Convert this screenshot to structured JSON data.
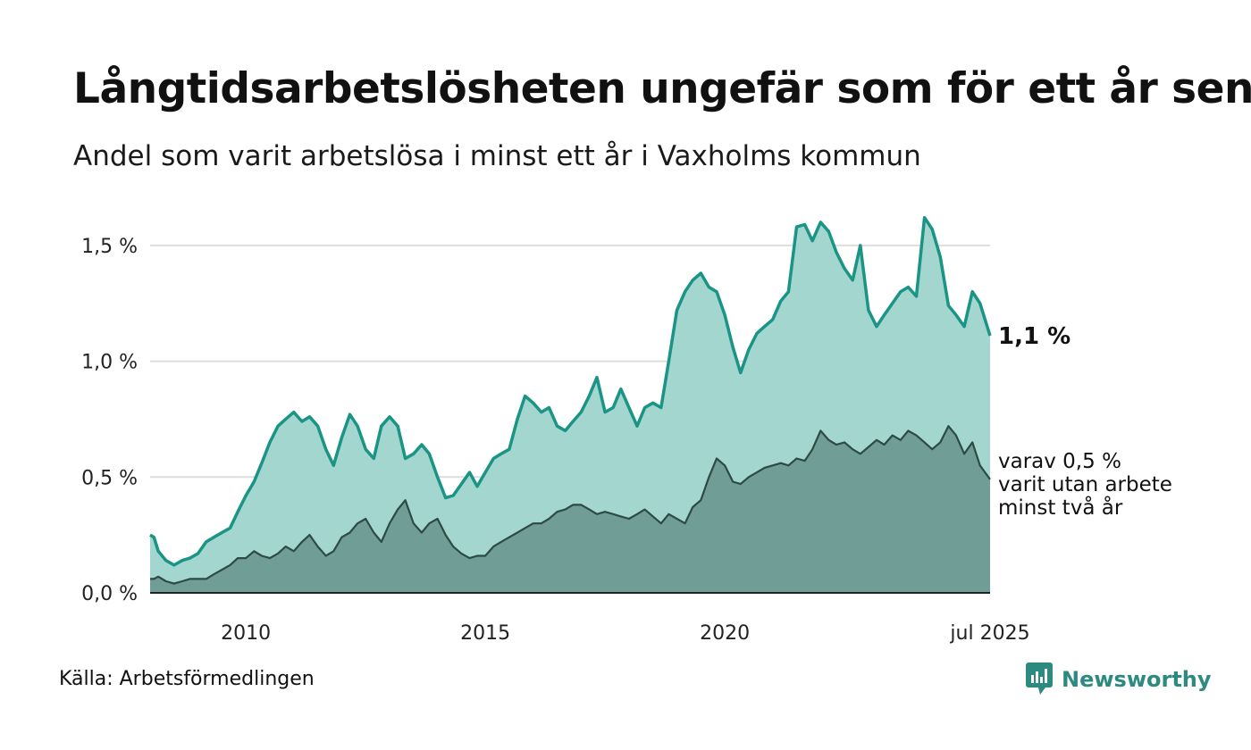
{
  "title": "Långtidsarbetslösheten ungefär som för ett år sen",
  "subtitle": "Andel som varit arbetslösa i minst ett år i Vaxholms kommun",
  "source": "Källa: Arbetsförmedlingen",
  "brand": {
    "name": "Newsworthy",
    "icon": "newsworthy-logo-icon"
  },
  "colors": {
    "upper_line": "#1a9485",
    "upper_fill": "#a4d6d0",
    "lower_line": "#2d4a45",
    "lower_fill": "#709d96",
    "grid": "#dddddd",
    "axis": "#222222",
    "brand": "#2c8a80"
  },
  "chart_data": {
    "type": "area",
    "title": "Långtidsarbetslösheten ungefär som för ett år sen",
    "subtitle": "Andel som varit arbetslösa i minst ett år i Vaxholms kommun",
    "xlabel": "",
    "ylabel": "",
    "x_ticks": [
      "2010",
      "2015",
      "2020",
      "jul 2025"
    ],
    "x_tick_values": [
      2010.0,
      2015.0,
      2020.0,
      2025.54
    ],
    "xlim": [
      2008.0,
      2025.54
    ],
    "y_ticks": [
      "0,0 %",
      "0,5 %",
      "1,0 %",
      "1,5 %"
    ],
    "y_tick_values": [
      0,
      0.5,
      1.0,
      1.5
    ],
    "ylim": [
      0,
      1.75
    ],
    "grid": true,
    "labels": {
      "last_value": "1,1 %",
      "lower_label": [
        "varav 0,5 %",
        "varit utan arbete",
        "minst två år"
      ]
    },
    "series": [
      {
        "key": "min_1_ar",
        "x": [
          2008.0,
          2008.08,
          2008.17,
          2008.33,
          2008.5,
          2008.67,
          2008.83,
          2009.0,
          2009.17,
          2009.33,
          2009.5,
          2009.67,
          2009.83,
          2010.0,
          2010.17,
          2010.33,
          2010.5,
          2010.67,
          2010.83,
          2011.0,
          2011.17,
          2011.33,
          2011.5,
          2011.67,
          2011.83,
          2012.0,
          2012.17,
          2012.33,
          2012.5,
          2012.67,
          2012.83,
          2013.0,
          2013.17,
          2013.33,
          2013.5,
          2013.67,
          2013.83,
          2014.0,
          2014.17,
          2014.33,
          2014.5,
          2014.67,
          2014.83,
          2015.0,
          2015.17,
          2015.33,
          2015.5,
          2015.67,
          2015.83,
          2016.0,
          2016.17,
          2016.33,
          2016.5,
          2016.67,
          2016.83,
          2017.0,
          2017.17,
          2017.33,
          2017.5,
          2017.67,
          2017.83,
          2018.0,
          2018.17,
          2018.33,
          2018.5,
          2018.67,
          2018.83,
          2019.0,
          2019.17,
          2019.33,
          2019.5,
          2019.67,
          2019.83,
          2020.0,
          2020.17,
          2020.33,
          2020.5,
          2020.67,
          2020.83,
          2021.0,
          2021.17,
          2021.33,
          2021.5,
          2021.67,
          2021.83,
          2022.0,
          2022.17,
          2022.33,
          2022.5,
          2022.67,
          2022.83,
          2023.0,
          2023.17,
          2023.33,
          2023.5,
          2023.67,
          2023.83,
          2024.0,
          2024.17,
          2024.33,
          2024.5,
          2024.67,
          2024.83,
          2025.0,
          2025.17,
          2025.33,
          2025.54
        ],
        "y": [
          0.25,
          0.24,
          0.18,
          0.14,
          0.12,
          0.14,
          0.15,
          0.17,
          0.22,
          0.24,
          0.26,
          0.28,
          0.35,
          0.42,
          0.48,
          0.56,
          0.65,
          0.72,
          0.75,
          0.78,
          0.74,
          0.76,
          0.72,
          0.62,
          0.55,
          0.67,
          0.77,
          0.72,
          0.62,
          0.58,
          0.72,
          0.76,
          0.72,
          0.58,
          0.6,
          0.64,
          0.6,
          0.5,
          0.41,
          0.42,
          0.47,
          0.52,
          0.46,
          0.52,
          0.58,
          0.6,
          0.62,
          0.75,
          0.85,
          0.82,
          0.78,
          0.8,
          0.72,
          0.7,
          0.74,
          0.78,
          0.85,
          0.93,
          0.78,
          0.8,
          0.88,
          0.8,
          0.72,
          0.8,
          0.82,
          0.8,
          1.0,
          1.22,
          1.3,
          1.35,
          1.38,
          1.32,
          1.3,
          1.2,
          1.06,
          0.95,
          1.05,
          1.12,
          1.15,
          1.18,
          1.26,
          1.3,
          1.58,
          1.59,
          1.52,
          1.6,
          1.56,
          1.47,
          1.4,
          1.35,
          1.5,
          1.22,
          1.15,
          1.2,
          1.25,
          1.3,
          1.32,
          1.28,
          1.62,
          1.57,
          1.45,
          1.24,
          1.2,
          1.15,
          1.3,
          1.25,
          1.11
        ],
        "last_label": "1,1 %"
      },
      {
        "key": "min_2_ar",
        "x": [
          2008.0,
          2008.08,
          2008.17,
          2008.33,
          2008.5,
          2008.67,
          2008.83,
          2009.0,
          2009.17,
          2009.33,
          2009.5,
          2009.67,
          2009.83,
          2010.0,
          2010.17,
          2010.33,
          2010.5,
          2010.67,
          2010.83,
          2011.0,
          2011.17,
          2011.33,
          2011.5,
          2011.67,
          2011.83,
          2012.0,
          2012.17,
          2012.33,
          2012.5,
          2012.67,
          2012.83,
          2013.0,
          2013.17,
          2013.33,
          2013.5,
          2013.67,
          2013.83,
          2014.0,
          2014.17,
          2014.33,
          2014.5,
          2014.67,
          2014.83,
          2015.0,
          2015.17,
          2015.33,
          2015.5,
          2015.67,
          2015.83,
          2016.0,
          2016.17,
          2016.33,
          2016.5,
          2016.67,
          2016.83,
          2017.0,
          2017.17,
          2017.33,
          2017.5,
          2017.67,
          2017.83,
          2018.0,
          2018.17,
          2018.33,
          2018.5,
          2018.67,
          2018.83,
          2019.0,
          2019.17,
          2019.33,
          2019.5,
          2019.67,
          2019.83,
          2020.0,
          2020.17,
          2020.33,
          2020.5,
          2020.67,
          2020.83,
          2021.0,
          2021.17,
          2021.33,
          2021.5,
          2021.67,
          2021.83,
          2022.0,
          2022.17,
          2022.33,
          2022.5,
          2022.67,
          2022.83,
          2023.0,
          2023.17,
          2023.33,
          2023.5,
          2023.67,
          2023.83,
          2024.0,
          2024.17,
          2024.33,
          2024.5,
          2024.67,
          2024.83,
          2025.0,
          2025.17,
          2025.33,
          2025.54
        ],
        "y": [
          0.06,
          0.06,
          0.07,
          0.05,
          0.04,
          0.05,
          0.06,
          0.06,
          0.06,
          0.08,
          0.1,
          0.12,
          0.15,
          0.15,
          0.18,
          0.16,
          0.15,
          0.17,
          0.2,
          0.18,
          0.22,
          0.25,
          0.2,
          0.16,
          0.18,
          0.24,
          0.26,
          0.3,
          0.32,
          0.26,
          0.22,
          0.3,
          0.36,
          0.4,
          0.3,
          0.26,
          0.3,
          0.32,
          0.25,
          0.2,
          0.17,
          0.15,
          0.16,
          0.16,
          0.2,
          0.22,
          0.24,
          0.26,
          0.28,
          0.3,
          0.3,
          0.32,
          0.35,
          0.36,
          0.38,
          0.38,
          0.36,
          0.34,
          0.35,
          0.34,
          0.33,
          0.32,
          0.34,
          0.36,
          0.33,
          0.3,
          0.34,
          0.32,
          0.3,
          0.37,
          0.4,
          0.5,
          0.58,
          0.55,
          0.48,
          0.47,
          0.5,
          0.52,
          0.54,
          0.55,
          0.56,
          0.55,
          0.58,
          0.57,
          0.62,
          0.7,
          0.66,
          0.64,
          0.65,
          0.62,
          0.6,
          0.63,
          0.66,
          0.64,
          0.68,
          0.66,
          0.7,
          0.68,
          0.65,
          0.62,
          0.65,
          0.72,
          0.68,
          0.6,
          0.65,
          0.55,
          0.49
        ],
        "last_label_lines": [
          "varav 0,5 %",
          "varit utan arbete",
          "minst två år"
        ]
      }
    ]
  }
}
